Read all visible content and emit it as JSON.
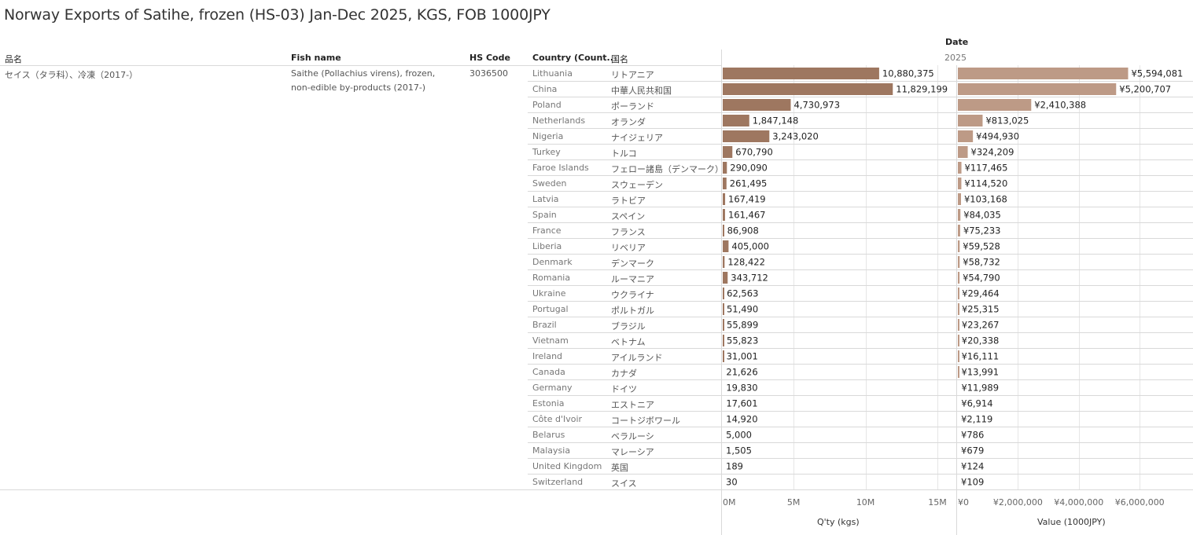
{
  "title": "Norway Exports of Satihe, frozen (HS-03) Jan-Dec 2025, KGS, FOB 1000JPY",
  "header": {
    "date_label": "Date",
    "year_label": "2025",
    "col_jp_name": "品名",
    "col_fish_name": "Fish name",
    "col_hs_code": "HS Code",
    "col_country": "Country (Count..",
    "col_country_jp": "国名"
  },
  "product": {
    "jp_name": "セイス（タラ科）、冷凍（2017-）",
    "fish_name_line1": "Saithe (Pollachius virens), frozen,",
    "fish_name_line2": "non-edible by-products (2017-)",
    "hs_code": "3036500"
  },
  "colors": {
    "qty_bar": "#9e7760",
    "value_bar": "#bd9a86",
    "grid": "#e6e6e6",
    "row_line": "#d9d9d9"
  },
  "chart_data": {
    "type": "bar",
    "orientation": "horizontal",
    "categories": [
      "Lithuania",
      "China",
      "Poland",
      "Netherlands",
      "Nigeria",
      "Turkey",
      "Faroe Islands",
      "Sweden",
      "Latvia",
      "Spain",
      "France",
      "Liberia",
      "Denmark",
      "Romania",
      "Ukraine",
      "Portugal",
      "Brazil",
      "Vietnam",
      "Ireland",
      "Canada",
      "Germany",
      "Estonia",
      "Côte d'Ivoir",
      "Belarus",
      "Malaysia",
      "United Kingdom",
      "Switzerland"
    ],
    "categories_jp": [
      "リトアニア",
      "中華人民共和国",
      "ポーランド",
      "オランダ",
      "ナイジェリア",
      "トルコ",
      "フェロー諸島（デンマーク）",
      "スウェーデン",
      "ラトビア",
      "スペイン",
      "フランス",
      "リベリア",
      "デンマーク",
      "ルーマニア",
      "ウクライナ",
      "ポルトガル",
      "ブラジル",
      "ベトナム",
      "アイルランド",
      "カナダ",
      "ドイツ",
      "エストニア",
      "コートジボワール",
      "ベラルーシ",
      "マレーシア",
      "英国",
      "スイス"
    ],
    "series": [
      {
        "name": "Q'ty (kgs)",
        "values": [
          10880375,
          11829199,
          4730973,
          1847148,
          3243020,
          670790,
          290090,
          261495,
          167419,
          161467,
          86908,
          405000,
          128422,
          343712,
          62563,
          51490,
          55899,
          55823,
          31001,
          21626,
          19830,
          17601,
          14920,
          5000,
          1505,
          189,
          30
        ],
        "labels": [
          "10,880,375",
          "11,829,199",
          "4,730,973",
          "1,847,148",
          "3,243,020",
          "670,790",
          "290,090",
          "261,495",
          "167,419",
          "161,467",
          "86,908",
          "405,000",
          "128,422",
          "343,712",
          "62,563",
          "51,490",
          "55,899",
          "55,823",
          "31,001",
          "21,626",
          "19,830",
          "17,601",
          "14,920",
          "5,000",
          "1,505",
          "189",
          "30"
        ],
        "axis_ticks": [
          0,
          5000000,
          10000000,
          15000000
        ],
        "axis_tick_labels": [
          "0M",
          "5M",
          "10M",
          "15M"
        ],
        "xlim": [
          0,
          16300000
        ],
        "xlabel": "Q'ty (kgs)"
      },
      {
        "name": "Value (1000JPY)",
        "values": [
          5594081,
          5200707,
          2410388,
          813025,
          494930,
          324209,
          117465,
          114520,
          103168,
          84035,
          75233,
          59528,
          58732,
          54790,
          29464,
          25315,
          23267,
          20338,
          16111,
          13991,
          11989,
          6914,
          2119,
          786,
          679,
          124,
          109
        ],
        "labels": [
          "¥5,594,081",
          "¥5,200,707",
          "¥2,410,388",
          "¥813,025",
          "¥494,930",
          "¥324,209",
          "¥117,465",
          "¥114,520",
          "¥103,168",
          "¥84,035",
          "¥75,233",
          "¥59,528",
          "¥58,732",
          "¥54,790",
          "¥29,464",
          "¥25,315",
          "¥23,267",
          "¥20,338",
          "¥16,111",
          "¥13,991",
          "¥11,989",
          "¥6,914",
          "¥2,119",
          "¥786",
          "¥679",
          "¥124",
          "¥109"
        ],
        "axis_ticks": [
          0,
          2000000,
          4000000,
          6000000
        ],
        "axis_tick_labels": [
          "¥0",
          "¥2,000,000",
          "¥4,000,000",
          "¥6,000,000"
        ],
        "xlim": [
          0,
          7700000
        ],
        "xlabel": "Value (1000JPY)"
      }
    ]
  }
}
